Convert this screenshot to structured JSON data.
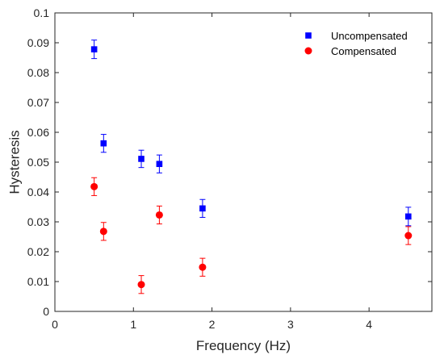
{
  "chart_data": {
    "type": "scatter",
    "title": "",
    "xlabel": "Frequency (Hz)",
    "ylabel": "Hysteresis",
    "xlim": [
      0,
      4.8
    ],
    "ylim": [
      0,
      0.1
    ],
    "x_ticks": [
      "0",
      "1",
      "2",
      "3",
      "4"
    ],
    "y_ticks": [
      "0",
      "0.01",
      "0.02",
      "0.03",
      "0.04",
      "0.05",
      "0.06",
      "0.07",
      "0.08",
      "0.09",
      "0.1"
    ],
    "grid": false,
    "legend_position": "top-right",
    "error_bars": true,
    "series": [
      {
        "name": "Uncompensated",
        "marker": "square",
        "color": "#0000ff",
        "x": [
          0.5,
          0.62,
          1.1,
          1.33,
          1.88,
          4.5
        ],
        "y": [
          0.0878,
          0.0563,
          0.0511,
          0.0494,
          0.0345,
          0.0318
        ],
        "err": [
          0.0031,
          0.003,
          0.0029,
          0.003,
          0.003,
          0.0031
        ]
      },
      {
        "name": "Compensated",
        "marker": "circle",
        "color": "#ff0000",
        "x": [
          0.5,
          0.62,
          1.1,
          1.33,
          1.88,
          4.5
        ],
        "y": [
          0.0418,
          0.0268,
          0.009,
          0.0323,
          0.0148,
          0.0254
        ],
        "err": [
          0.003,
          0.003,
          0.003,
          0.003,
          0.003,
          0.003
        ]
      }
    ]
  }
}
